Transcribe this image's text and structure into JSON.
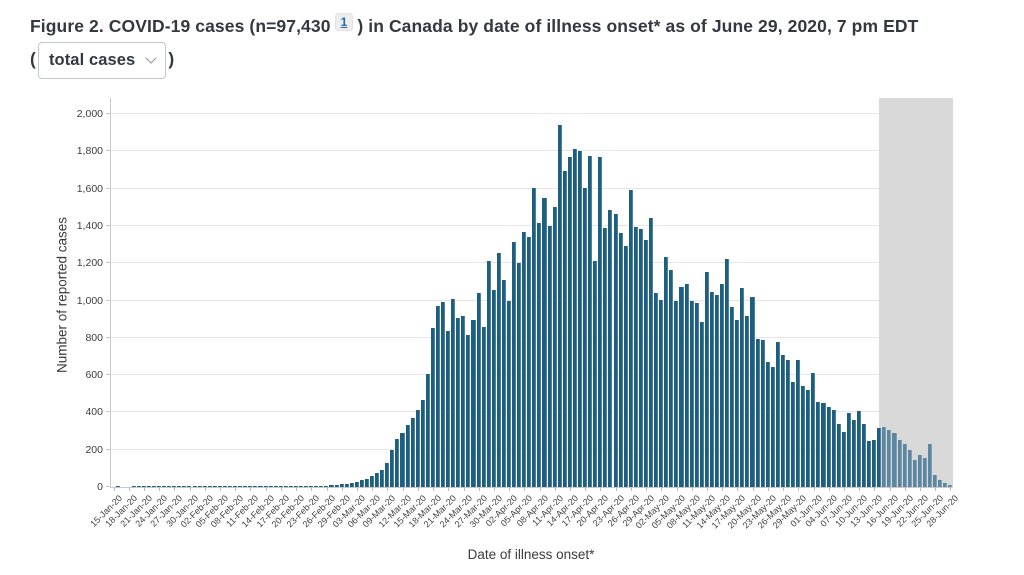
{
  "header": {
    "title_prefix": "Figure 2. COVID-19 cases (n=97,430",
    "footnote_ref": "1",
    "title_suffix": ") in Canada by date of illness onset* as of June 29, 2020, 7 pm EDT",
    "paren_open": "(",
    "paren_close": ")",
    "metric_selector": {
      "value": "total cases"
    }
  },
  "colors": {
    "bar": "#1d5f80",
    "bar_shaded": "#5d87a0",
    "lag_band": "#d9d9d9",
    "link": "#2567a6",
    "title_text": "#333940"
  },
  "chart_data": {
    "type": "bar",
    "title": "COVID-19 cases in Canada by date of illness onset",
    "xlabel": "Date of illness onset*",
    "ylabel": "Number of reported cases",
    "ylim": [
      0,
      2000
    ],
    "grid": true,
    "ytick_values": [
      0,
      200,
      400,
      600,
      800,
      1000,
      1200,
      1400,
      1600,
      1800,
      2000
    ],
    "ytick_labels": [
      "0",
      "200",
      "400",
      "600",
      "800",
      "1,000",
      "1,200",
      "1,400",
      "1,600",
      "1,800",
      "2,000"
    ],
    "xtick_labels": [
      "15-Jan-20",
      "18-Jan-20",
      "21-Jan-20",
      "24-Jan-20",
      "27-Jan-20",
      "30-Jan-20",
      "02-Feb-20",
      "05-Feb-20",
      "08-Feb-20",
      "11-Feb-20",
      "14-Feb-20",
      "17-Feb-20",
      "20-Feb-20",
      "23-Feb-20",
      "26-Feb-20",
      "29-Feb-20",
      "03-Mar-20",
      "06-Mar-20",
      "09-Mar-20",
      "12-Mar-20",
      "15-Mar-20",
      "18-Mar-20",
      "21-Mar-20",
      "24-Mar-20",
      "27-Mar-20",
      "30-Mar-20",
      "02-Apr-20",
      "05-Apr-20",
      "08-Apr-20",
      "11-Apr-20",
      "14-Apr-20",
      "17-Apr-20",
      "20-Apr-20",
      "23-Apr-20",
      "26-Apr-20",
      "29-Apr-20",
      "02-May-20",
      "05-May-20",
      "08-May-20",
      "11-May-20",
      "14-May-20",
      "17-May-20",
      "20-May-20",
      "23-May-20",
      "26-May-20",
      "29-May-20",
      "01-Jun-20",
      "04-Jun-20",
      "07-Jun-20",
      "10-Jun-20",
      "13-Jun-20",
      "16-Jun-20",
      "19-Jun-20",
      "22-Jun-20",
      "25-Jun-20",
      "28-Jun-20"
    ],
    "categories": [
      "15-Jan-20",
      "16-Jan-20",
      "17-Jan-20",
      "18-Jan-20",
      "19-Jan-20",
      "20-Jan-20",
      "21-Jan-20",
      "22-Jan-20",
      "23-Jan-20",
      "24-Jan-20",
      "25-Jan-20",
      "26-Jan-20",
      "27-Jan-20",
      "28-Jan-20",
      "29-Jan-20",
      "30-Jan-20",
      "31-Jan-20",
      "01-Feb-20",
      "02-Feb-20",
      "03-Feb-20",
      "04-Feb-20",
      "05-Feb-20",
      "06-Feb-20",
      "07-Feb-20",
      "08-Feb-20",
      "09-Feb-20",
      "10-Feb-20",
      "11-Feb-20",
      "12-Feb-20",
      "13-Feb-20",
      "14-Feb-20",
      "15-Feb-20",
      "16-Feb-20",
      "17-Feb-20",
      "18-Feb-20",
      "19-Feb-20",
      "20-Feb-20",
      "21-Feb-20",
      "22-Feb-20",
      "23-Feb-20",
      "24-Feb-20",
      "25-Feb-20",
      "26-Feb-20",
      "27-Feb-20",
      "28-Feb-20",
      "29-Feb-20",
      "01-Mar-20",
      "02-Mar-20",
      "03-Mar-20",
      "04-Mar-20",
      "05-Mar-20",
      "06-Mar-20",
      "07-Mar-20",
      "08-Mar-20",
      "09-Mar-20",
      "10-Mar-20",
      "11-Mar-20",
      "12-Mar-20",
      "13-Mar-20",
      "14-Mar-20",
      "15-Mar-20",
      "16-Mar-20",
      "17-Mar-20",
      "18-Mar-20",
      "19-Mar-20",
      "20-Mar-20",
      "21-Mar-20",
      "22-Mar-20",
      "23-Mar-20",
      "24-Mar-20",
      "25-Mar-20",
      "26-Mar-20",
      "27-Mar-20",
      "28-Mar-20",
      "29-Mar-20",
      "30-Mar-20",
      "31-Mar-20",
      "01-Apr-20",
      "02-Apr-20",
      "03-Apr-20",
      "04-Apr-20",
      "05-Apr-20",
      "06-Apr-20",
      "07-Apr-20",
      "08-Apr-20",
      "09-Apr-20",
      "10-Apr-20",
      "11-Apr-20",
      "12-Apr-20",
      "13-Apr-20",
      "14-Apr-20",
      "15-Apr-20",
      "16-Apr-20",
      "17-Apr-20",
      "18-Apr-20",
      "19-Apr-20",
      "20-Apr-20",
      "21-Apr-20",
      "22-Apr-20",
      "23-Apr-20",
      "24-Apr-20",
      "25-Apr-20",
      "26-Apr-20",
      "27-Apr-20",
      "28-Apr-20",
      "29-Apr-20",
      "30-Apr-20",
      "01-May-20",
      "02-May-20",
      "03-May-20",
      "04-May-20",
      "05-May-20",
      "06-May-20",
      "07-May-20",
      "08-May-20",
      "09-May-20",
      "10-May-20",
      "11-May-20",
      "12-May-20",
      "13-May-20",
      "14-May-20",
      "15-May-20",
      "16-May-20",
      "17-May-20",
      "18-May-20",
      "19-May-20",
      "20-May-20",
      "21-May-20",
      "22-May-20",
      "23-May-20",
      "24-May-20",
      "25-May-20",
      "26-May-20",
      "27-May-20",
      "28-May-20",
      "29-May-20",
      "30-May-20",
      "31-May-20",
      "01-Jun-20",
      "02-Jun-20",
      "03-Jun-20",
      "04-Jun-20",
      "05-Jun-20",
      "06-Jun-20",
      "07-Jun-20",
      "08-Jun-20",
      "09-Jun-20",
      "10-Jun-20",
      "11-Jun-20",
      "12-Jun-20",
      "13-Jun-20",
      "14-Jun-20",
      "15-Jun-20",
      "16-Jun-20",
      "17-Jun-20",
      "18-Jun-20",
      "19-Jun-20",
      "20-Jun-20",
      "21-Jun-20",
      "22-Jun-20",
      "23-Jun-20",
      "24-Jun-20",
      "25-Jun-20",
      "26-Jun-20",
      "27-Jun-20",
      "28-Jun-20"
    ],
    "values": [
      0,
      1,
      0,
      0,
      2,
      1,
      3,
      4,
      3,
      2,
      4,
      2,
      3,
      4,
      2,
      1,
      2,
      2,
      1,
      2,
      3,
      2,
      1,
      2,
      3,
      4,
      3,
      2,
      3,
      4,
      3,
      2,
      4,
      3,
      4,
      5,
      6,
      5,
      6,
      8,
      7,
      6,
      8,
      10,
      13,
      16,
      18,
      22,
      28,
      35,
      45,
      60,
      75,
      90,
      130,
      200,
      255,
      290,
      335,
      370,
      415,
      465,
      605,
      850,
      970,
      990,
      835,
      1010,
      905,
      915,
      815,
      895,
      1040,
      860,
      1210,
      1055,
      1255,
      1110,
      995,
      1315,
      1200,
      1370,
      1340,
      1605,
      1415,
      1550,
      1400,
      1500,
      1940,
      1695,
      1770,
      1810,
      1800,
      1605,
      1775,
      1210,
      1770,
      1390,
      1485,
      1465,
      1360,
      1290,
      1595,
      1395,
      1385,
      1325,
      1440,
      1040,
      1005,
      1235,
      1165,
      995,
      1075,
      1090,
      995,
      985,
      885,
      1155,
      1045,
      1030,
      1090,
      1220,
      965,
      895,
      1065,
      915,
      1020,
      795,
      790,
      670,
      645,
      780,
      710,
      680,
      565,
      680,
      540,
      520,
      610,
      455,
      450,
      430,
      415,
      340,
      295,
      395,
      360,
      405,
      340,
      245,
      250,
      315,
      320,
      305,
      290,
      250,
      230,
      200,
      145,
      170,
      155,
      230,
      65,
      40,
      20,
      10
    ],
    "shaded_region": {
      "start": "15-Jun-20",
      "end": "28-Jun-20",
      "start_index": 152
    },
    "legend": []
  }
}
